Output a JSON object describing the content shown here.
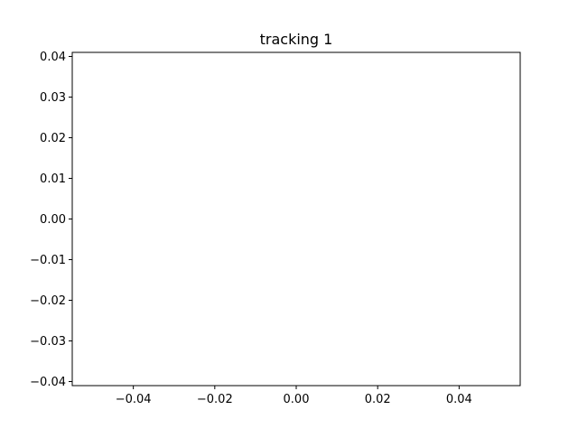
{
  "chart_data": {
    "type": "scatter",
    "title": "tracking 1",
    "xlabel": "",
    "ylabel": "",
    "series": [],
    "xlim": [
      -0.055,
      0.055
    ],
    "ylim": [
      -0.041,
      0.041
    ],
    "xticks": [
      -0.04,
      -0.02,
      0.0,
      0.02,
      0.04
    ],
    "xtick_labels": [
      "−0.04",
      "−0.02",
      "0.00",
      "0.02",
      "0.04"
    ],
    "yticks": [
      -0.04,
      -0.03,
      -0.02,
      -0.01,
      0.0,
      0.01,
      0.02,
      0.03,
      0.04
    ],
    "ytick_labels": [
      "−0.04",
      "−0.03",
      "−0.02",
      "−0.01",
      "0.00",
      "0.01",
      "0.02",
      "0.03",
      "0.04"
    ],
    "grid": false,
    "legend": "none"
  }
}
